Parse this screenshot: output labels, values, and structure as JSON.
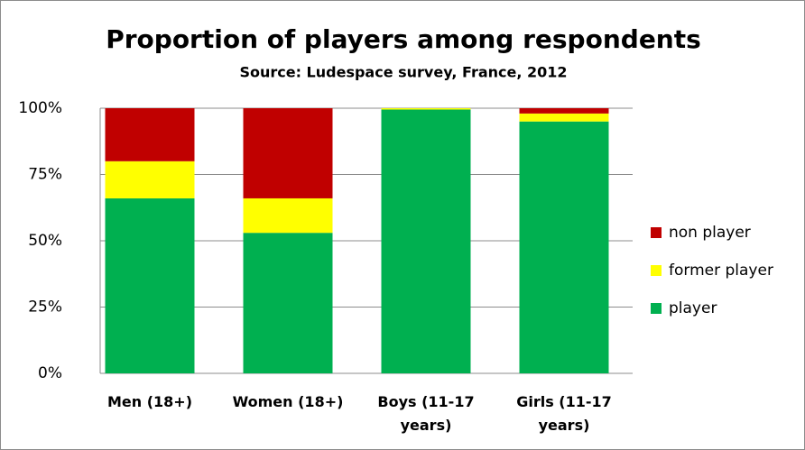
{
  "chart_data": {
    "type": "stacked_bar",
    "title": "Proportion of players among respondents",
    "subtitle": "Source: Ludespace survey, France, 2012",
    "categories": [
      "Men (18+)",
      "Women (18+)",
      "Boys (11-17 years)",
      "Girls (11-17 years)"
    ],
    "series": [
      {
        "name": "player",
        "color": "#00b050",
        "values": [
          66,
          53,
          99.5,
          95
        ]
      },
      {
        "name": "former player",
        "color": "#ffff00",
        "values": [
          14,
          13,
          0.5,
          3
        ]
      },
      {
        "name": "non player",
        "color": "#c00000",
        "values": [
          20,
          34,
          0,
          2
        ]
      }
    ],
    "ylim": [
      0,
      100
    ],
    "yticks": [
      {
        "value": 0,
        "label": "0%"
      },
      {
        "value": 25,
        "label": "25%"
      },
      {
        "value": 50,
        "label": "50%"
      },
      {
        "value": 75,
        "label": "75%"
      },
      {
        "value": 100,
        "label": "100%"
      }
    ],
    "grid": true,
    "legend": "right"
  }
}
